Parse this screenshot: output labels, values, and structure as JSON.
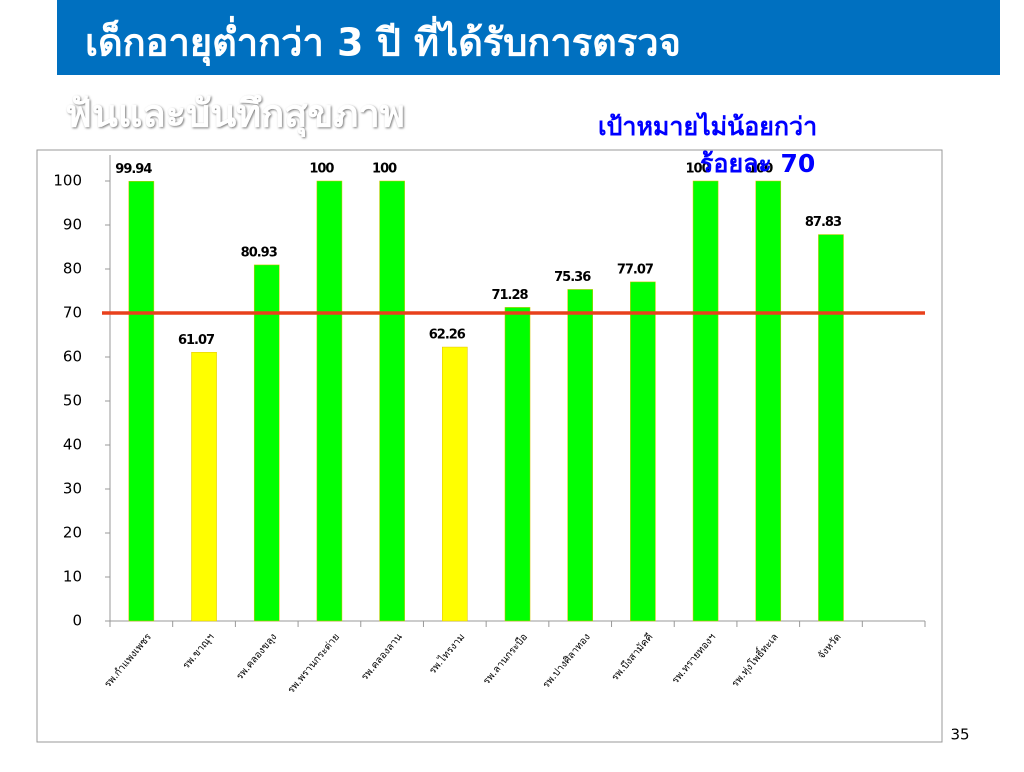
{
  "chart_data": {
    "type": "bar",
    "title_lines": [
      "เด็กอายุต่ำกว่า 3 ปี ที่ได้รับการตรวจ",
      "ฟันและบันทึกสุขภาพ"
    ],
    "annotation_lines": [
      "เป้าหมายไม่น้อยกว่า",
      "ร้อยละ 70"
    ],
    "categories": [
      "รพ.กำแพงเพชร",
      "รพ.ขาณุฯ",
      "รพ.คลองขลุง",
      "รพ.พรานกระต่าย",
      "รพ.คลองลาน",
      "รพ.ไทรงาม",
      "รพ.ลานกระบือ",
      "รพ.ปางศิลาทอง",
      "รพ.บึงสามัคคี",
      "รพ.ทรายทองฯ",
      "รพ.ทุ่งโพธิ์ทะเล",
      "จังหวัด",
      null
    ],
    "values": [
      99.94,
      61.07,
      80.93,
      100,
      100,
      62.26,
      71.28,
      75.36,
      77.07,
      100,
      100,
      87.83,
      null
    ],
    "colors": [
      "#00ff00",
      "#ffff00",
      "#00ff00",
      "#00ff00",
      "#00ff00",
      "#ffff00",
      "#00ff00",
      "#00ff00",
      "#00ff00",
      "#00ff00",
      "#00ff00",
      "#00ff00",
      null
    ],
    "target": 70,
    "target_color": "#e8401c",
    "ylim": [
      0,
      100
    ],
    "yticks": [
      0,
      10,
      20,
      30,
      40,
      50,
      60,
      70,
      80,
      90,
      100
    ],
    "page_number": "35"
  }
}
